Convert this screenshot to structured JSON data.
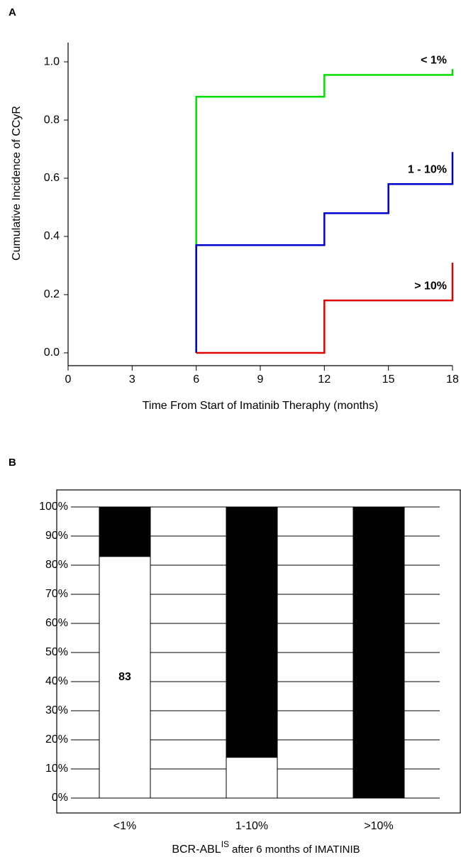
{
  "chart_data": [
    {
      "type": "line",
      "panel": "A",
      "x_label": "Time From Start of Imatinib Theraphy (months)",
      "y_label": "Cumulative Incidence of CCyR",
      "xlim": [
        0,
        18
      ],
      "xticks": [
        0,
        3,
        6,
        9,
        12,
        15,
        18
      ],
      "ylim": [
        -0.044,
        1.066
      ],
      "yticks": [
        {
          "value": 0,
          "label": "0.0"
        },
        0.2,
        0.4,
        0.6,
        0.8,
        {
          "value": 1,
          "label": "1.0"
        }
      ],
      "series": [
        {
          "name": "< 1%",
          "color": "#00dd00",
          "x": [
            6,
            6,
            12,
            12,
            18,
            18
          ],
          "values": [
            0,
            0.88,
            0.88,
            0.955,
            0.955,
            0.975
          ]
        },
        {
          "name": "1 - 10%",
          "color": "#0000cc",
          "x": [
            6,
            6,
            12,
            12,
            15,
            15,
            18,
            18
          ],
          "values": [
            0,
            0.37,
            0.37,
            0.48,
            0.48,
            0.58,
            0.58,
            0.69
          ]
        },
        {
          "name": "> 10%",
          "color": "#e00000",
          "x": [
            6,
            12,
            12,
            18,
            18
          ],
          "values": [
            0,
            0,
            0.18,
            0.18,
            0.31
          ]
        }
      ]
    },
    {
      "type": "bar",
      "panel": "B",
      "stacked": true,
      "grid": true,
      "x_label_main": "BCR-ABL",
      "x_label_sup": "IS",
      "x_label_rest": "after 6 months of IMATINIB",
      "categories": [
        "<1%",
        "1-10%",
        ">10%"
      ],
      "ylim": [
        0,
        100
      ],
      "yticks": [
        {
          "value": 0,
          "label": "0%"
        },
        {
          "value": 10,
          "label": "10%"
        },
        {
          "value": 20,
          "label": "20%"
        },
        {
          "value": 30,
          "label": "30%"
        },
        {
          "value": 40,
          "label": "40%"
        },
        {
          "value": 50,
          "label": "50%"
        },
        {
          "value": 60,
          "label": "60%"
        },
        {
          "value": 70,
          "label": "70%"
        },
        {
          "value": 80,
          "label": "80%"
        },
        {
          "value": 90,
          "label": "90%"
        },
        {
          "value": 100,
          "label": "100%"
        }
      ],
      "series": [
        {
          "color": "#ffffff",
          "label_color": "#000000",
          "values": [
            83,
            14,
            0
          ],
          "labeled": [
            true,
            false,
            false
          ]
        },
        {
          "color": "#000000",
          "label_color": "#ffffff",
          "values": [
            17,
            86,
            100
          ],
          "labeled": [
            false,
            true,
            true
          ]
        }
      ]
    }
  ]
}
